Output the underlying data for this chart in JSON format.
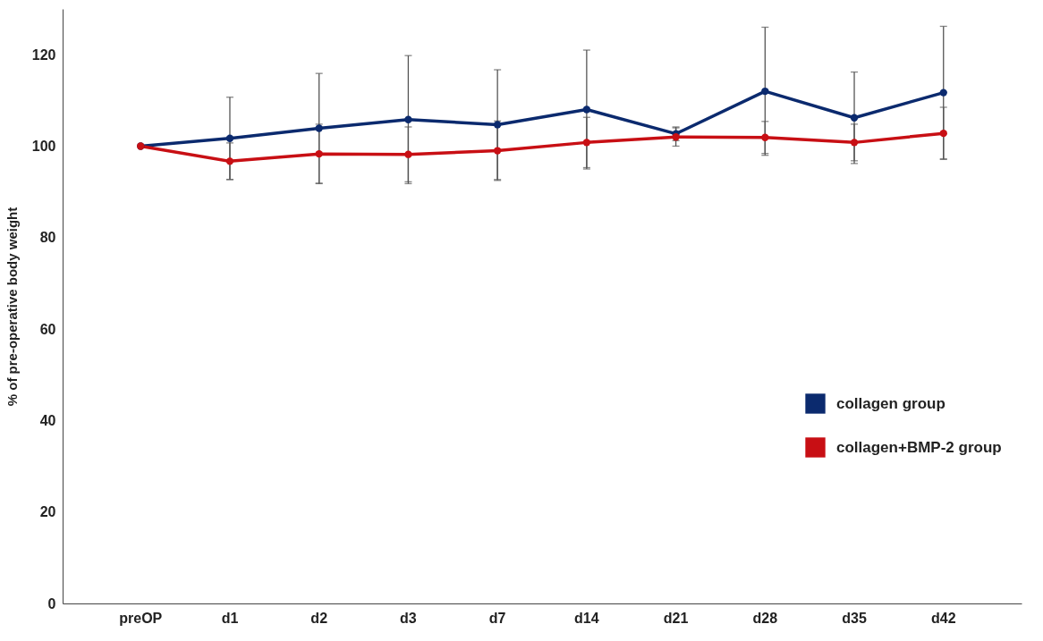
{
  "chart_data": {
    "type": "line",
    "ylabel": "% of pre-operative body weight",
    "categories": [
      "preOP",
      "d1",
      "d2",
      "d3",
      "d7",
      "d14",
      "d21",
      "d28",
      "d35",
      "d42"
    ],
    "series": [
      {
        "name": "collagen group",
        "color": "#0b2a6e",
        "values": [
          100,
          101.7,
          103.9,
          105.8,
          104.7,
          108.0,
          102.7,
          112.0,
          106.2,
          111.7
        ],
        "errors": [
          null,
          9,
          12,
          14,
          12,
          13,
          1.5,
          14,
          10,
          14.5
        ]
      },
      {
        "name": "collagen+BMP-2 group",
        "color": "#c80f14",
        "values": [
          100,
          96.7,
          98.3,
          98.2,
          99.0,
          100.8,
          102.0,
          101.9,
          100.8,
          102.8
        ],
        "errors": [
          null,
          4,
          6.5,
          6,
          6.5,
          5.5,
          2,
          3.5,
          4,
          5.7
        ]
      }
    ],
    "ylim": [
      0,
      130
    ],
    "yticks": [
      0,
      20,
      40,
      60,
      80,
      100,
      120
    ],
    "grid": false,
    "legend": "right",
    "marker": "circle",
    "line_style": "solid"
  }
}
